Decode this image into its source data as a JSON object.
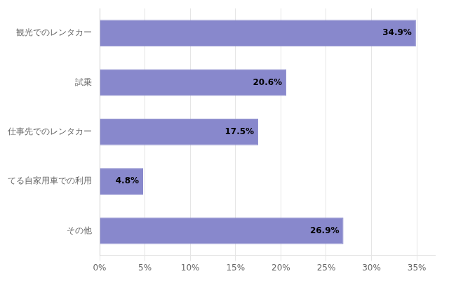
{
  "chart_data": {
    "type": "bar",
    "orientation": "horizontal",
    "categories": [
      "観光でのレンタカー",
      "試乗",
      "仕事先でのレンタカー",
      "てる自家用車での利用",
      "その他"
    ],
    "values": [
      34.9,
      20.6,
      17.5,
      4.8,
      26.9
    ],
    "value_labels": [
      "34.9%",
      "20.6%",
      "17.5%",
      "4.8%",
      "26.9%"
    ],
    "data_labels": true,
    "color": "#8888CC",
    "xlim": [
      0,
      37
    ],
    "xticks": [
      {
        "value": 0,
        "label": "0%"
      },
      {
        "value": 5,
        "label": "5%"
      },
      {
        "value": 10,
        "label": "10%"
      },
      {
        "value": 15,
        "label": "15%"
      },
      {
        "value": 20,
        "label": "20%"
      },
      {
        "value": 25,
        "label": "25%"
      },
      {
        "value": 30,
        "label": "30%"
      },
      {
        "value": 35,
        "label": "35%"
      }
    ],
    "grid": true
  }
}
